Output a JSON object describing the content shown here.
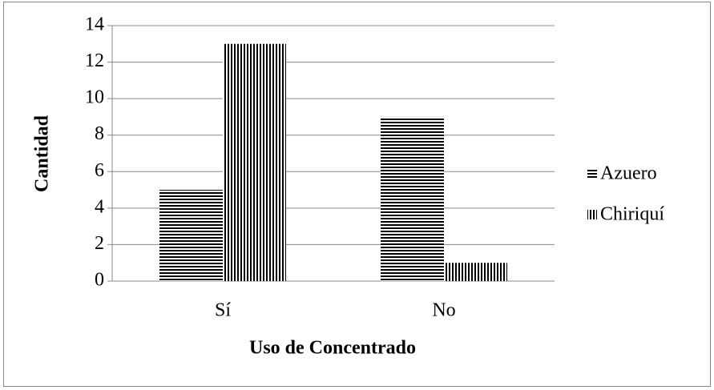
{
  "chart_data": {
    "type": "bar",
    "categories": [
      "Sí",
      "No"
    ],
    "series": [
      {
        "name": "Azuero",
        "color": "#000000",
        "pattern": "horizontal",
        "values": [
          5,
          9
        ]
      },
      {
        "name": "Chiriquí",
        "color": "#000000",
        "pattern": "vertical",
        "values": [
          13,
          1
        ]
      }
    ],
    "x_label": "Uso de Concentrado",
    "y_label": "Cantidad",
    "ylim": [
      0,
      14
    ],
    "yticks": [
      0,
      2,
      4,
      6,
      8,
      10,
      12,
      14
    ],
    "grid": true,
    "legend": "right"
  }
}
